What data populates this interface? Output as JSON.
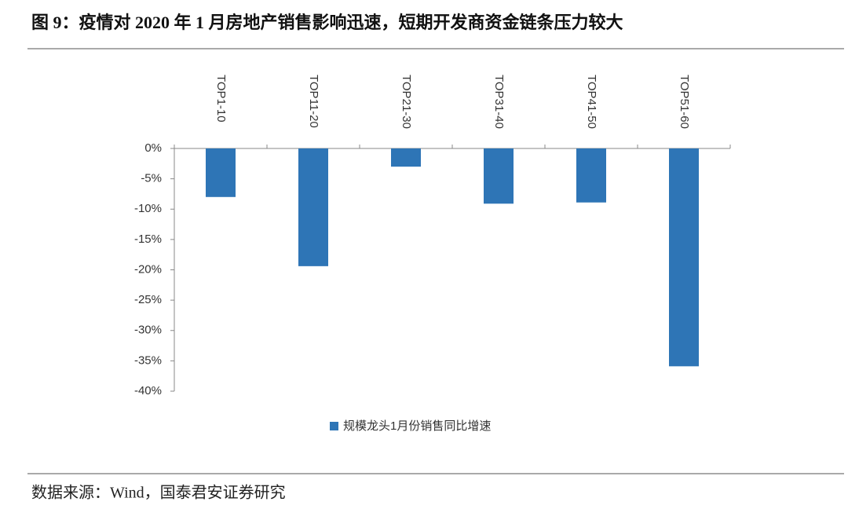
{
  "chart_data": {
    "type": "bar",
    "title": "图 9：疫情对 2020 年 1 月房地产销售影响迅速，短期开发商资金链条压力较大",
    "categories": [
      "TOP1-10",
      "TOP11-20",
      "TOP21-30",
      "TOP31-40",
      "TOP41-50",
      "TOP51-60"
    ],
    "series": [
      {
        "name": "规模龙头1月份销售同比增速",
        "color": "#2e75b6",
        "values": [
          -8.0,
          -19.4,
          -3.0,
          -9.1,
          -8.9,
          -35.9
        ]
      }
    ],
    "ylim": [
      -40,
      0
    ],
    "yticks": [
      {
        "value": 0,
        "label": "0%"
      },
      {
        "value": -5,
        "label": "-5%"
      },
      {
        "value": -10,
        "label": "-10%"
      },
      {
        "value": -15,
        "label": "-15%"
      },
      {
        "value": -20,
        "label": "-20%"
      },
      {
        "value": -25,
        "label": "-25%"
      },
      {
        "value": -30,
        "label": "-30%"
      },
      {
        "value": -35,
        "label": "-35%"
      },
      {
        "value": -40,
        "label": "-40%"
      }
    ],
    "source": "数据来源：Wind，国泰君安证券研究"
  }
}
